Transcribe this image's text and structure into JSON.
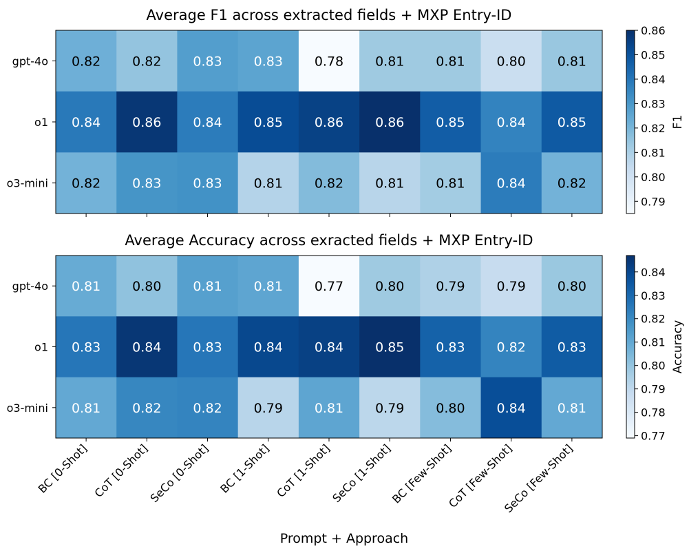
{
  "figure": {
    "xlabel": "Prompt + Approach"
  },
  "chart_data": [
    {
      "type": "heatmap",
      "title": "Average F1 across extracted fields + MXP Entry-ID",
      "colorbar_label": "F1",
      "colormap": "Blues",
      "vmin": 0.785,
      "vmax": 0.86,
      "colorbar_ticks": [
        "0.79",
        "0.80",
        "0.81",
        "0.82",
        "0.83",
        "0.84",
        "0.85",
        "0.86"
      ],
      "colorbar_tick_values": [
        0.79,
        0.8,
        0.81,
        0.82,
        0.83,
        0.84,
        0.85,
        0.86
      ],
      "rows": [
        "gpt-4o",
        "o1",
        "o3-mini"
      ],
      "columns": [
        "BC [0-Shot]",
        "CoT [0-Shot]",
        "SeCo [0-Shot]",
        "BC [1-Shot]",
        "CoT [1-Shot]",
        "SeCo [1-Shot]",
        "BC [Few-Shot]",
        "CoT [Few-Shot]",
        "SeCo [Few-Shot]"
      ],
      "values": [
        [
          0.822,
          0.815,
          0.828,
          0.826,
          0.785,
          0.813,
          0.813,
          0.802,
          0.814
        ],
        [
          0.839,
          0.858,
          0.838,
          0.852,
          0.855,
          0.86,
          0.847,
          0.836,
          0.848
        ],
        [
          0.821,
          0.831,
          0.832,
          0.808,
          0.818,
          0.807,
          0.812,
          0.838,
          0.821
        ]
      ],
      "labels": [
        [
          "0.82",
          "0.82",
          "0.83",
          "0.83",
          "0.78",
          "0.81",
          "0.81",
          "0.80",
          "0.81"
        ],
        [
          "0.84",
          "0.86",
          "0.84",
          "0.85",
          "0.86",
          "0.86",
          "0.85",
          "0.84",
          "0.85"
        ],
        [
          "0.82",
          "0.83",
          "0.83",
          "0.81",
          "0.82",
          "0.81",
          "0.81",
          "0.84",
          "0.82"
        ]
      ]
    },
    {
      "type": "heatmap",
      "title": "Average Accuracy across exracted fields + MXP Entry-ID",
      "colorbar_label": "Accuracy",
      "colormap": "Blues",
      "vmin": 0.769,
      "vmax": 0.847,
      "colorbar_ticks": [
        "0.77",
        "0.78",
        "0.79",
        "0.80",
        "0.81",
        "0.82",
        "0.83",
        "0.84"
      ],
      "colorbar_tick_values": [
        0.77,
        0.78,
        0.79,
        0.8,
        0.81,
        0.82,
        0.83,
        0.84
      ],
      "rows": [
        "gpt-4o",
        "o1",
        "o3-mini"
      ],
      "columns": [
        "BC [0-Shot]",
        "CoT [0-Shot]",
        "SeCo [0-Shot]",
        "BC [1-Shot]",
        "CoT [1-Shot]",
        "SeCo [1-Shot]",
        "BC [Few-Shot]",
        "CoT [Few-Shot]",
        "SeCo [Few-Shot]"
      ],
      "values": [
        [
          0.809,
          0.801,
          0.813,
          0.811,
          0.769,
          0.798,
          0.794,
          0.788,
          0.799
        ],
        [
          0.826,
          0.845,
          0.826,
          0.84,
          0.842,
          0.847,
          0.832,
          0.822,
          0.834
        ],
        [
          0.81,
          0.821,
          0.822,
          0.792,
          0.811,
          0.791,
          0.803,
          0.838,
          0.81
        ]
      ],
      "labels": [
        [
          "0.81",
          "0.80",
          "0.81",
          "0.81",
          "0.77",
          "0.80",
          "0.79",
          "0.79",
          "0.80"
        ],
        [
          "0.83",
          "0.84",
          "0.83",
          "0.84",
          "0.84",
          "0.85",
          "0.83",
          "0.82",
          "0.83"
        ],
        [
          "0.81",
          "0.82",
          "0.82",
          "0.79",
          "0.81",
          "0.79",
          "0.80",
          "0.84",
          "0.81"
        ]
      ]
    }
  ]
}
